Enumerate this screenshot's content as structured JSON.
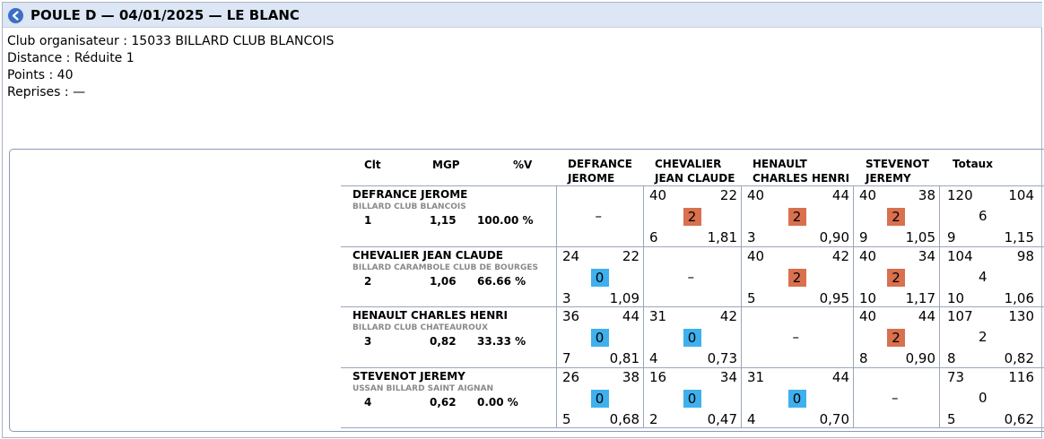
{
  "header": {
    "title": "POULE D — 04/01/2025 — LE BLANC",
    "back_icon": "arrow-left-circle-icon"
  },
  "info": {
    "club": "Club organisateur : 15033 BILLARD CLUB BLANCOIS",
    "distance": "Distance : Réduite 1",
    "points": "Points : 40",
    "reprises": "Reprises : —"
  },
  "table": {
    "col_clt": "Clt",
    "col_mgp": "MGP",
    "col_pv": "%V",
    "opp_headers": [
      {
        "line1": "DEFRANCE",
        "line2": "JEROME"
      },
      {
        "line1": "CHEVALIER",
        "line2": "JEAN CLAUDE"
      },
      {
        "line1": "HENAULT",
        "line2": "CHARLES HENRI"
      },
      {
        "line1": "STEVENOT",
        "line2": "JEREMY"
      }
    ],
    "col_totaux": "Totaux",
    "dash": "–",
    "colors": {
      "win": "#d9704e",
      "loss": "#3fb0ee"
    },
    "rows": [
      {
        "name": "DEFRANCE JEROME",
        "club": "BILLARD CLUB BLANCOIS",
        "clt": "1",
        "mgp": "1,15",
        "pv": "100.00 %",
        "cells": [
          null,
          {
            "pts": "40",
            "opp": "22",
            "res": "2",
            "rep": "6",
            "moy": "1,81"
          },
          {
            "pts": "40",
            "opp": "44",
            "res": "2",
            "rep": "3",
            "moy": "0,90"
          },
          {
            "pts": "40",
            "opp": "38",
            "res": "2",
            "rep": "9",
            "moy": "1,05"
          }
        ],
        "total": {
          "pts": "120",
          "opp": "104",
          "res": "6",
          "rep": "9",
          "moy": "1,15"
        }
      },
      {
        "name": "CHEVALIER JEAN CLAUDE",
        "club": "BILLARD CARAMBOLE CLUB DE BOURGES",
        "clt": "2",
        "mgp": "1,06",
        "pv": "66.66 %",
        "cells": [
          {
            "pts": "24",
            "opp": "22",
            "res": "0",
            "rep": "3",
            "moy": "1,09"
          },
          null,
          {
            "pts": "40",
            "opp": "42",
            "res": "2",
            "rep": "5",
            "moy": "0,95"
          },
          {
            "pts": "40",
            "opp": "34",
            "res": "2",
            "rep": "10",
            "moy": "1,17"
          }
        ],
        "total": {
          "pts": "104",
          "opp": "98",
          "res": "4",
          "rep": "10",
          "moy": "1,06"
        }
      },
      {
        "name": "HENAULT CHARLES HENRI",
        "club": "BILLARD CLUB CHATEAUROUX",
        "clt": "3",
        "mgp": "0,82",
        "pv": "33.33 %",
        "cells": [
          {
            "pts": "36",
            "opp": "44",
            "res": "0",
            "rep": "7",
            "moy": "0,81"
          },
          {
            "pts": "31",
            "opp": "42",
            "res": "0",
            "rep": "4",
            "moy": "0,73"
          },
          null,
          {
            "pts": "40",
            "opp": "44",
            "res": "2",
            "rep": "8",
            "moy": "0,90"
          }
        ],
        "total": {
          "pts": "107",
          "opp": "130",
          "res": "2",
          "rep": "8",
          "moy": "0,82"
        }
      },
      {
        "name": "STEVENOT JEREMY",
        "club": "USSAN BILLARD SAINT AIGNAN",
        "clt": "4",
        "mgp": "0,62",
        "pv": "0.00 %",
        "cells": [
          {
            "pts": "26",
            "opp": "38",
            "res": "0",
            "rep": "5",
            "moy": "0,68"
          },
          {
            "pts": "16",
            "opp": "34",
            "res": "0",
            "rep": "2",
            "moy": "0,47"
          },
          {
            "pts": "31",
            "opp": "44",
            "res": "0",
            "rep": "4",
            "moy": "0,70"
          },
          null
        ],
        "total": {
          "pts": "73",
          "opp": "116",
          "res": "0",
          "rep": "5",
          "moy": "0,62"
        }
      }
    ]
  }
}
